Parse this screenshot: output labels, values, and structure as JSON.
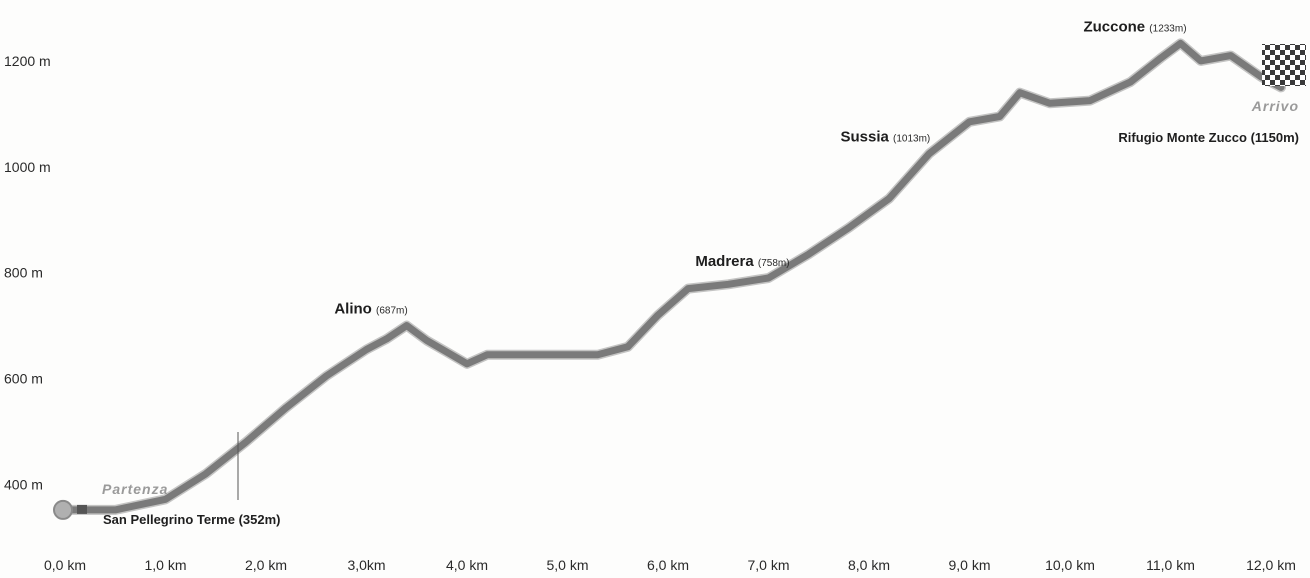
{
  "chart_data": {
    "type": "line",
    "xlabel": "",
    "ylabel": "",
    "x_ticks": [
      "0,0 km",
      "1,0 km",
      "2,0 km",
      "3,0km",
      "4,0 km",
      "5,0 km",
      "6,0 km",
      "7,0 km",
      "8,0 km",
      "9,0 km",
      "10,0 km",
      "11,0 km",
      "12,0 km"
    ],
    "y_ticks": [
      "400 m",
      "600 m",
      "800 m",
      "1000 m",
      "1200 m"
    ],
    "xlim": [
      0,
      12
    ],
    "ylim": [
      300,
      1300
    ],
    "series": [
      {
        "x": [
          0.0,
          0.5,
          1.0,
          1.4,
          1.8,
          2.2,
          2.6,
          3.0,
          3.2,
          3.4,
          3.6,
          3.8,
          4.0,
          4.2,
          4.6,
          5.0,
          5.3,
          5.6,
          5.9,
          6.2,
          6.6,
          7.0,
          7.4,
          7.8,
          8.2,
          8.6,
          9.0,
          9.3,
          9.5,
          9.8,
          10.2,
          10.6,
          10.9,
          11.1,
          11.3,
          11.6,
          11.9,
          12.1
        ],
        "y": [
          352,
          352,
          372,
          420,
          480,
          545,
          605,
          655,
          675,
          700,
          672,
          650,
          628,
          645,
          645,
          645,
          645,
          660,
          720,
          770,
          778,
          790,
          835,
          885,
          940,
          1025,
          1085,
          1095,
          1140,
          1120,
          1125,
          1160,
          1205,
          1233,
          1200,
          1210,
          1170,
          1150
        ],
        "color": "#7a7a7a"
      }
    ],
    "annotations": [
      {
        "name": "Alino",
        "alt": "(687m)",
        "x": 3.35,
        "y": 700
      },
      {
        "name": "Madrera",
        "alt": "(758m)",
        "x": 7.15,
        "y": 790
      },
      {
        "name": "Sussia",
        "alt": "(1013m)",
        "x": 8.55,
        "y": 1025
      },
      {
        "name": "Zuccone",
        "alt": "(1233m)",
        "x": 11.1,
        "y": 1233
      }
    ],
    "start": {
      "word": "Partenza",
      "place": "San Pellegrino Terme (352m)"
    },
    "finish": {
      "word": "Arrivo",
      "place": "Rifugio Monte Zucco (1150m)"
    }
  }
}
